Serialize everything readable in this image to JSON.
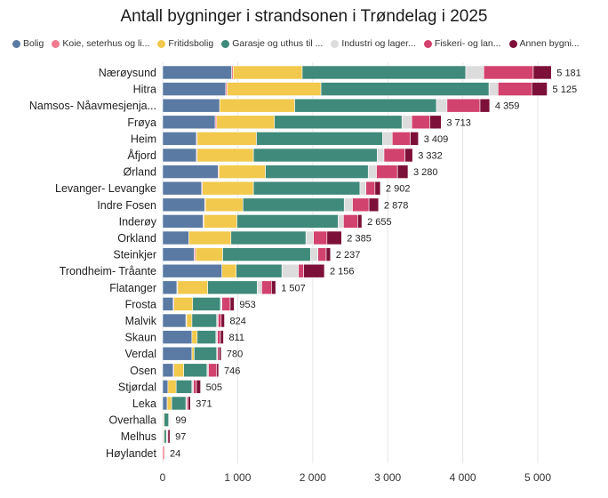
{
  "chart_data": {
    "type": "bar",
    "orientation": "horizontal",
    "stacked": true,
    "title": "Antall bygninger i strandsonen i Trøndelag i 2025",
    "xlabel": "",
    "ylabel": "",
    "xlim": [
      0,
      5300
    ],
    "x_ticks": [
      0,
      1000,
      2000,
      3000,
      4000,
      5000
    ],
    "x_tick_labels": [
      "0",
      "1 000",
      "2 000",
      "3 000",
      "4 000",
      "5 000"
    ],
    "grid": "vertical",
    "legend_position": "top",
    "legend_labels": [
      "Bolig",
      "Koie, seterhus og li...",
      "Fritidsbolig",
      "Garasje og uthus til ...",
      "Industri og lager...",
      "Fiskeri- og lan...",
      "Annen bygni..."
    ],
    "categories": [
      "Nærøysund",
      "Hitra",
      "Namsos- Nåavmesjenja...",
      "Frøya",
      "Heim",
      "Åfjord",
      "Ørland",
      "Levanger- Levangke",
      "Indre Fosen",
      "Inderøy",
      "Orkland",
      "Steinkjer",
      "Trondheim- Tråante",
      "Flatanger",
      "Frosta",
      "Malvik",
      "Skaun",
      "Verdal",
      "Osen",
      "Stjørdal",
      "Leka",
      "Overhalla",
      "Melhus",
      "Høylandet"
    ],
    "totals": [
      5181,
      5125,
      4359,
      3713,
      3409,
      3332,
      3280,
      2902,
      2878,
      2655,
      2385,
      2237,
      2156,
      1507,
      953,
      824,
      811,
      780,
      746,
      505,
      371,
      99,
      97,
      24
    ],
    "total_labels": [
      "5 181",
      "5 125",
      "4 359",
      "3 713",
      "3 409",
      "3 332",
      "3 280",
      "2 902",
      "2 878",
      "2 655",
      "2 385",
      "2 237",
      "2 156",
      "1 507",
      "953",
      "824",
      "811",
      "780",
      "746",
      "505",
      "371",
      "99",
      "97",
      "24"
    ],
    "series": [
      {
        "name": "Bolig",
        "color": "#5a7aa3",
        "values": [
          920,
          840,
          760,
          700,
          450,
          450,
          740,
          520,
          560,
          540,
          350,
          420,
          790,
          190,
          140,
          310,
          390,
          390,
          140,
          70,
          60,
          10,
          10,
          0
        ]
      },
      {
        "name": "Koie, seterhus og li...",
        "color": "#f07b8f",
        "values": [
          20,
          20,
          0,
          20,
          10,
          10,
          10,
          10,
          10,
          10,
          0,
          20,
          0,
          10,
          10,
          10,
          0,
          0,
          10,
          0,
          0,
          0,
          0,
          24
        ]
      },
      {
        "name": "Fritidsbolig",
        "color": "#f2c94c",
        "values": [
          920,
          1250,
          1000,
          770,
          790,
          750,
          620,
          680,
          500,
          440,
          560,
          360,
          190,
          400,
          250,
          70,
          70,
          30,
          130,
          110,
          60,
          10,
          10,
          0
        ]
      },
      {
        "name": "Garasje og uthus til ...",
        "color": "#3f8a7a",
        "values": [
          2180,
          2240,
          1890,
          1700,
          1680,
          1650,
          1370,
          1420,
          1350,
          1350,
          1000,
          1170,
          610,
          660,
          370,
          330,
          250,
          300,
          310,
          210,
          190,
          60,
          30,
          0
        ]
      },
      {
        "name": "Industri og lager...",
        "color": "#dcdcdc",
        "values": [
          240,
          120,
          140,
          130,
          130,
          90,
          110,
          80,
          110,
          70,
          100,
          100,
          220,
          60,
          20,
          20,
          20,
          10,
          20,
          20,
          10,
          10,
          10,
          0
        ]
      },
      {
        "name": "Fiskeri- og lan...",
        "color": "#d2426e",
        "values": [
          660,
          450,
          440,
          240,
          240,
          280,
          280,
          120,
          220,
          190,
          180,
          110,
          70,
          130,
          110,
          40,
          40,
          20,
          110,
          40,
          20,
          5,
          10,
          0
        ]
      },
      {
        "name": "Annen bygni...",
        "color": "#7d1038",
        "values": [
          241,
          205,
          129,
          153,
          109,
          102,
          140,
          72,
          128,
          55,
          195,
          57,
          276,
          57,
          53,
          44,
          41,
          30,
          26,
          55,
          31,
          4,
          27,
          0
        ]
      }
    ]
  }
}
